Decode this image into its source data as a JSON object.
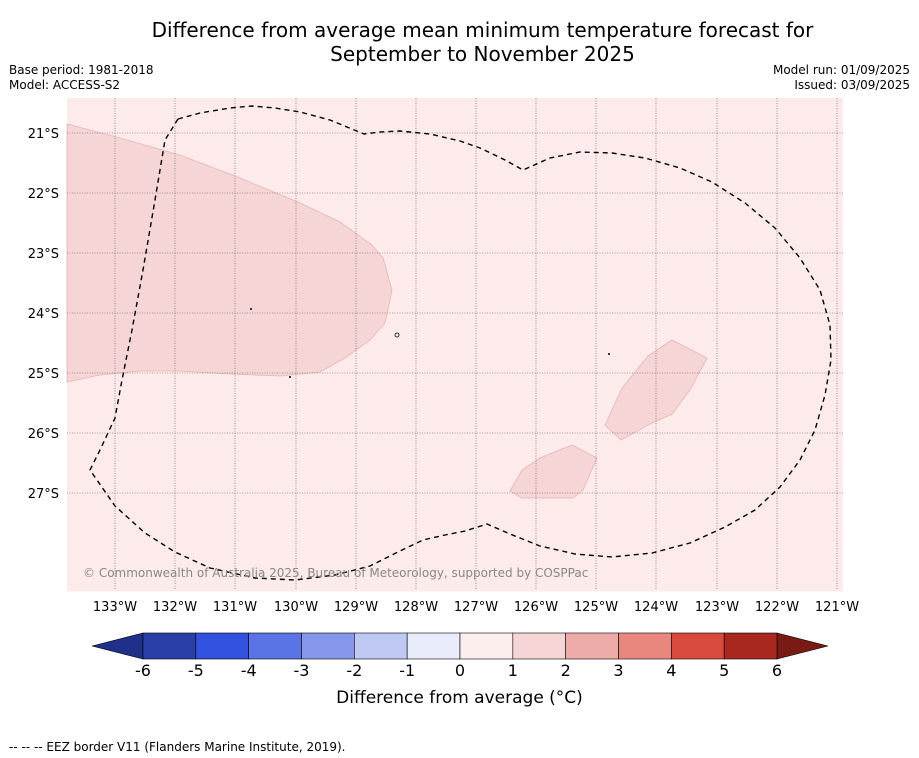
{
  "title_line1": "Difference from average mean minimum temperature forecast for",
  "title_line2": "September to November 2025",
  "meta_left": [
    "Base period: 1981-2018",
    "Model: ACCESS-S2"
  ],
  "meta_right": [
    "Model run: 01/09/2025",
    "Issued: 03/09/2025"
  ],
  "lat_labels": [
    "21°S",
    "22°S",
    "23°S",
    "24°S",
    "25°S",
    "26°S",
    "27°S"
  ],
  "lon_labels": [
    "133°W",
    "132°W",
    "131°W",
    "130°W",
    "129°W",
    "128°W",
    "127°W",
    "126°W",
    "125°W",
    "124°W",
    "123°W",
    "122°W",
    "121°W"
  ],
  "copyright": "© Commonwealth of Australia 2025, Bureau of Meteorology, supported by COSPPac",
  "colorbar": {
    "ticks": [
      "-6",
      "-5",
      "-4",
      "-3",
      "-2",
      "-1",
      "0",
      "1",
      "2",
      "3",
      "4",
      "5",
      "6"
    ],
    "colors": [
      "#2a3fa8",
      "#3352e0",
      "#5a74e6",
      "#8798ec",
      "#c0c8f4",
      "#e8ecfb",
      "#fdeeee",
      "#f5d5d5",
      "#eeaca8",
      "#e8877d",
      "#d94a3e",
      "#a8271f"
    ],
    "low_cap_color": "#1f2f8a",
    "high_cap_color": "#7a1a14",
    "title": "Difference from average (°C)"
  },
  "footer": "--  --  -- EEZ border V11 (Flanders Marine Institute, 2019).",
  "map_colors": {
    "background": "#fcebea",
    "anomaly_1_2": "#f5d5d5"
  }
}
